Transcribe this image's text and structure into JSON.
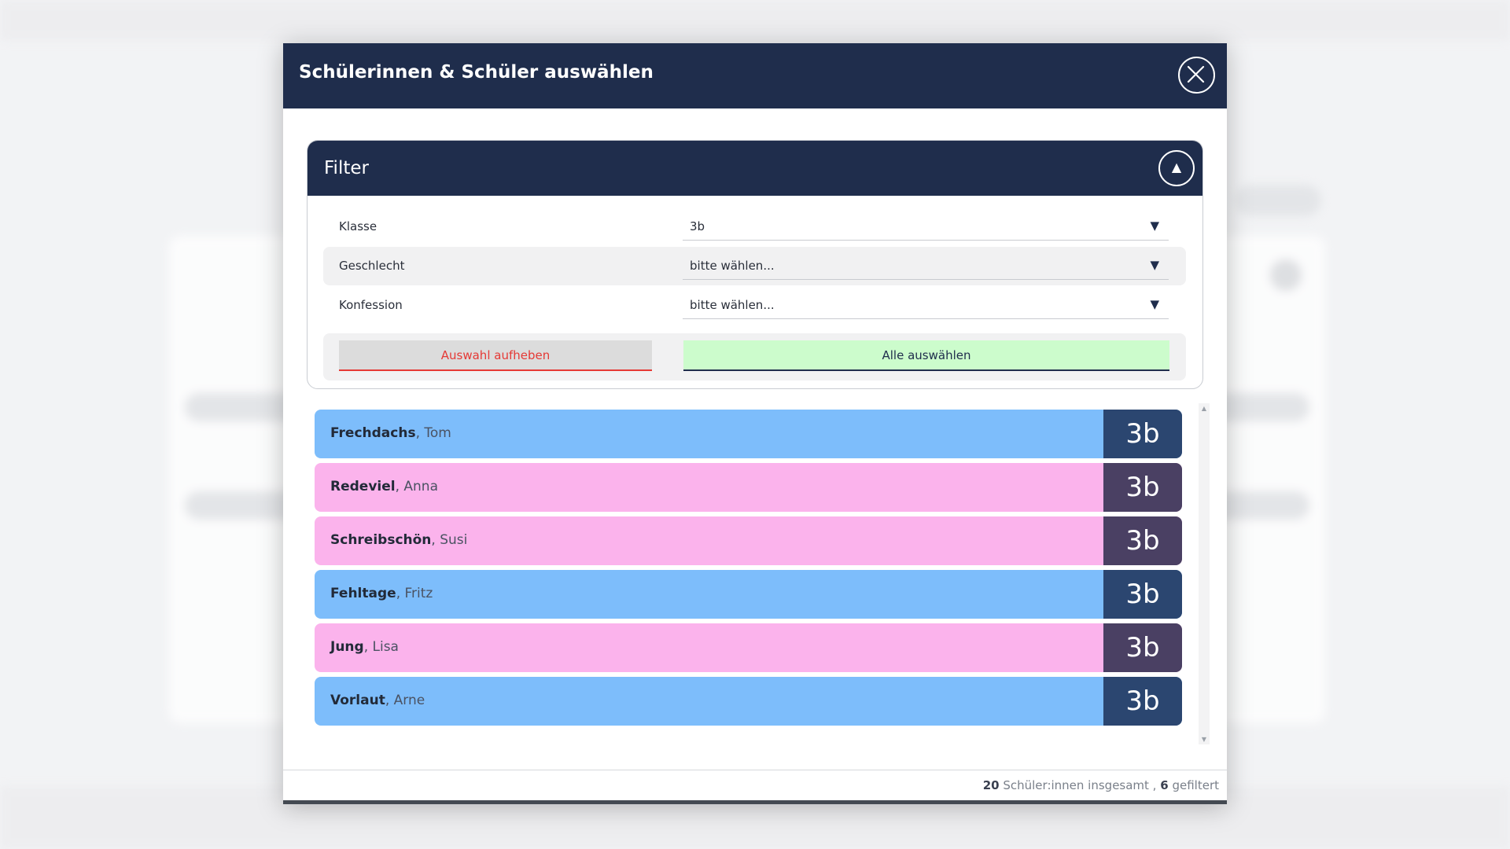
{
  "modal": {
    "title": "Schülerinnen & Schüler auswählen"
  },
  "filter": {
    "title": "Filter",
    "rows": [
      {
        "label": "Klasse",
        "value": "3b"
      },
      {
        "label": "Geschlecht",
        "value": "bitte wählen..."
      },
      {
        "label": "Konfession",
        "value": "bitte wählen..."
      }
    ],
    "clear_label": "Auswahl aufheben",
    "select_all_label": "Alle auswählen"
  },
  "students": [
    {
      "last": "Frechdachs",
      "first": ", Tom",
      "class": "3b",
      "color": "#7dbdfb",
      "class_color": "#2b4670"
    },
    {
      "last": "Redeviel",
      "first": ", Anna",
      "class": "3b",
      "color": "#fbb3ec",
      "class_color": "#4a4063"
    },
    {
      "last": "Schreibschön",
      "first": ", Susi",
      "class": "3b",
      "color": "#fbb3ec",
      "class_color": "#4a4063"
    },
    {
      "last": "Fehltage",
      "first": ", Fritz",
      "class": "3b",
      "color": "#7dbdfb",
      "class_color": "#2b4670"
    },
    {
      "last": "Jung",
      "first": ", Lisa",
      "class": "3b",
      "color": "#fbb3ec",
      "class_color": "#4a4063"
    },
    {
      "last": "Vorlaut",
      "first": ", Arne",
      "class": "3b",
      "color": "#7dbdfb",
      "class_color": "#2b4670"
    }
  ],
  "footer": {
    "total": "20",
    "total_text": "Schüler:innen insgesamt ,",
    "filtered": "6",
    "filtered_text": "gefiltert"
  },
  "colors": {
    "header": "#1f2d4c",
    "boy": "#7dbdfb",
    "girl": "#fbb3ec",
    "clear_accent": "#e53935",
    "select_all_bg": "#ccfccc"
  }
}
